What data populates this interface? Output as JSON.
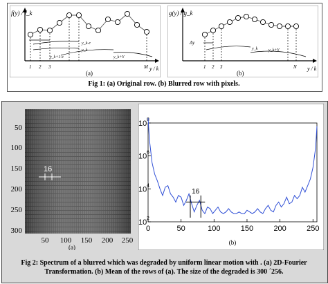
{
  "fig1": {
    "panel_a": {
      "y_label": "f(y) / f_k",
      "x_label": "y / k",
      "sub_label": "(a)",
      "x_ticks": [
        "1",
        "2",
        "3",
        "M"
      ],
      "curve_labels": [
        "y_k-c",
        "y_k",
        "y_k+1-c",
        "y_k+Y"
      ]
    },
    "panel_b": {
      "y_label": "g(y) / g_k",
      "x_label": "y / k",
      "sub_label": "(b)",
      "x_ticks": [
        "1",
        "2",
        "3",
        "N"
      ],
      "curve_labels": [
        "Δy",
        "y_k",
        "y_k+Y"
      ]
    },
    "caption": "Fig 1: (a) Original row. (b) Blurred row with pixels."
  },
  "fig2": {
    "caption_line1": "Fig 2: Spectrum of a blurred which was degraded by uniform linear motion with . (a) 2D-Fourier",
    "caption_line2": "Transformation. (b) Mean of the rows of (a). The size of the degraded is 300 ´256.",
    "panel_a": {
      "sub_label": "(a)",
      "y_ticks": [
        "50",
        "100",
        "150",
        "200",
        "250",
        "300"
      ],
      "x_ticks": [
        "50",
        "100",
        "150",
        "200",
        "250"
      ],
      "annotation": "16"
    },
    "panel_b": {
      "sub_label": "(b)",
      "annotation": "16",
      "y_tick_mantissa": [
        "10",
        "10",
        "10",
        "10"
      ],
      "y_tick_exponents": [
        "8",
        "6",
        "4",
        "2"
      ],
      "x_ticks": [
        "0",
        "50",
        "100",
        "150",
        "200",
        "250"
      ]
    }
  },
  "chart_data": [
    {
      "type": "line",
      "title": "",
      "xlabel": "",
      "ylabel": "",
      "xlim": [
        0,
        256
      ],
      "ylim_log10": [
        2,
        8
      ],
      "log_scale_y": true,
      "series": [
        {
          "values": [
            {
              "x": 0,
              "y": 8.3
            },
            {
              "x": 2,
              "y": 7.0
            },
            {
              "x": 6,
              "y": 5.6
            },
            {
              "x": 10,
              "y": 4.9
            },
            {
              "x": 14,
              "y": 4.5
            },
            {
              "x": 18,
              "y": 4.0
            },
            {
              "x": 22,
              "y": 3.6
            },
            {
              "x": 26,
              "y": 4.1
            },
            {
              "x": 30,
              "y": 4.2
            },
            {
              "x": 34,
              "y": 3.7
            },
            {
              "x": 38,
              "y": 3.5
            },
            {
              "x": 42,
              "y": 3.2
            },
            {
              "x": 46,
              "y": 3.6
            },
            {
              "x": 50,
              "y": 3.5
            },
            {
              "x": 54,
              "y": 3.0
            },
            {
              "x": 58,
              "y": 3.3
            },
            {
              "x": 62,
              "y": 3.7
            },
            {
              "x": 66,
              "y": 3.1
            },
            {
              "x": 70,
              "y": 2.6
            },
            {
              "x": 74,
              "y": 3.0
            },
            {
              "x": 78,
              "y": 3.3
            },
            {
              "x": 82,
              "y": 2.7
            },
            {
              "x": 86,
              "y": 2.5
            },
            {
              "x": 90,
              "y": 2.9
            },
            {
              "x": 94,
              "y": 2.8
            },
            {
              "x": 98,
              "y": 2.5
            },
            {
              "x": 102,
              "y": 2.7
            },
            {
              "x": 106,
              "y": 2.9
            },
            {
              "x": 110,
              "y": 2.6
            },
            {
              "x": 114,
              "y": 2.5
            },
            {
              "x": 118,
              "y": 2.6
            },
            {
              "x": 122,
              "y": 2.8
            },
            {
              "x": 126,
              "y": 2.6
            },
            {
              "x": 130,
              "y": 2.5
            },
            {
              "x": 134,
              "y": 2.5
            },
            {
              "x": 138,
              "y": 2.6
            },
            {
              "x": 142,
              "y": 2.5
            },
            {
              "x": 146,
              "y": 2.5
            },
            {
              "x": 150,
              "y": 2.7
            },
            {
              "x": 154,
              "y": 2.6
            },
            {
              "x": 158,
              "y": 2.5
            },
            {
              "x": 162,
              "y": 2.6
            },
            {
              "x": 166,
              "y": 2.8
            },
            {
              "x": 170,
              "y": 2.6
            },
            {
              "x": 174,
              "y": 2.5
            },
            {
              "x": 178,
              "y": 2.8
            },
            {
              "x": 182,
              "y": 3.0
            },
            {
              "x": 186,
              "y": 2.7
            },
            {
              "x": 190,
              "y": 2.6
            },
            {
              "x": 194,
              "y": 3.0
            },
            {
              "x": 198,
              "y": 3.2
            },
            {
              "x": 202,
              "y": 2.9
            },
            {
              "x": 206,
              "y": 3.1
            },
            {
              "x": 210,
              "y": 3.5
            },
            {
              "x": 214,
              "y": 3.1
            },
            {
              "x": 218,
              "y": 3.2
            },
            {
              "x": 222,
              "y": 3.6
            },
            {
              "x": 226,
              "y": 3.4
            },
            {
              "x": 230,
              "y": 3.6
            },
            {
              "x": 234,
              "y": 4.1
            },
            {
              "x": 238,
              "y": 3.8
            },
            {
              "x": 242,
              "y": 4.2
            },
            {
              "x": 246,
              "y": 4.6
            },
            {
              "x": 250,
              "y": 5.3
            },
            {
              "x": 254,
              "y": 6.5
            },
            {
              "x": 256,
              "y": 7.8
            }
          ]
        }
      ],
      "annotation": "16",
      "annotation_span": [
        64,
        80
      ]
    }
  ],
  "colors": {
    "line": "#2f4fd6",
    "panel_bg": "#fbfbfb",
    "figure_bg": "#d9d9d9",
    "spectrum_dark": "#3a3a3a",
    "spectrum_light": "#8c8c8c"
  }
}
